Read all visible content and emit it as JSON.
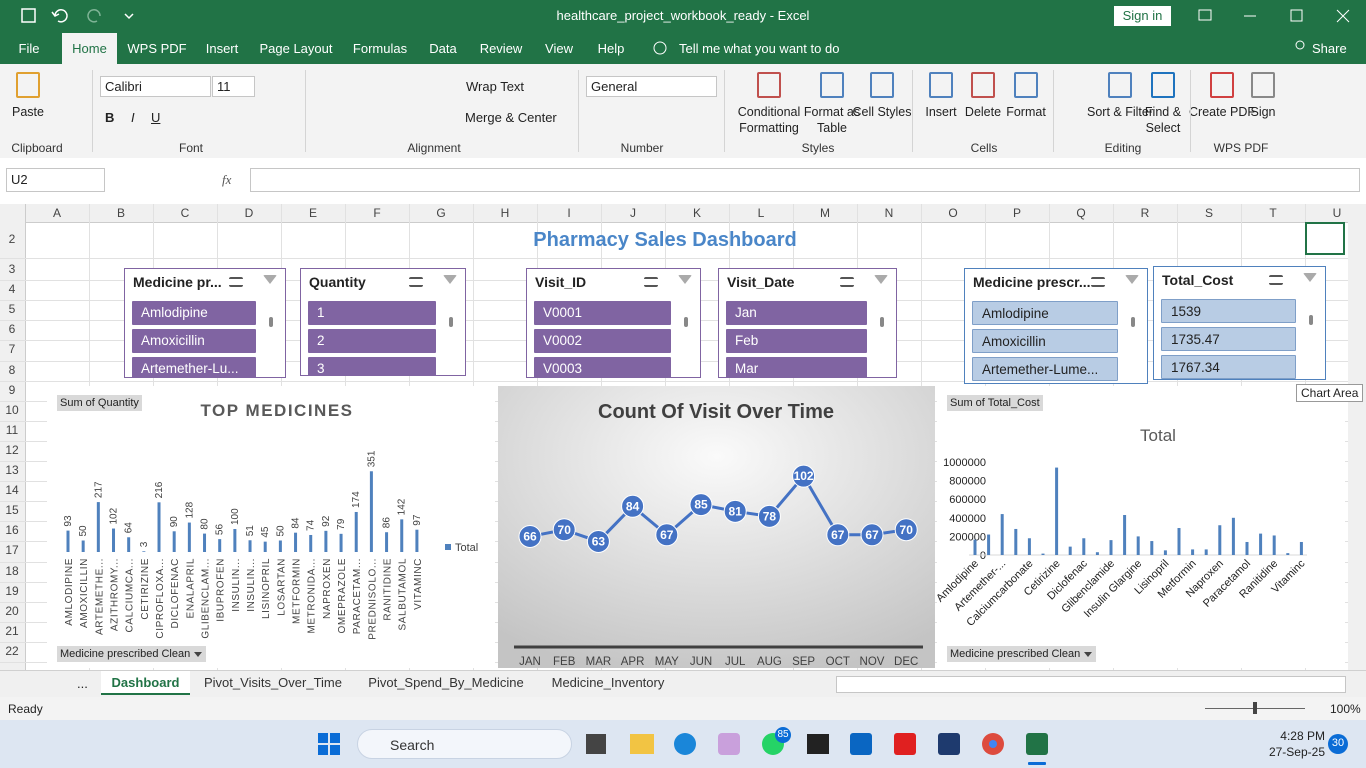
{
  "title_bar": {
    "title": "healthcare_project_workbook_ready  -  Excel",
    "sign_in": "Sign in"
  },
  "menu_tabs": [
    "File",
    "Home",
    "WPS PDF",
    "Insert",
    "Page Layout",
    "Formulas",
    "Data",
    "Review",
    "View",
    "Help"
  ],
  "tell_me": "Tell me what you want to do",
  "share": "Share",
  "ribbon": {
    "font_name": "Calibri",
    "font_size": "11",
    "wrap_text": "Wrap Text",
    "merge_center": "Merge & Center",
    "number_format": "General",
    "buttons": [
      "Paste",
      "Conditional Formatting",
      "Format as Table",
      "Cell Styles",
      "Insert",
      "Delete",
      "Format",
      "Sort & Filter",
      "Find & Select",
      "Create PDF",
      "Sign"
    ],
    "groups": [
      "Clipboard",
      "Font",
      "Alignment",
      "Number",
      "Styles",
      "Cells",
      "Editing",
      "WPS PDF"
    ]
  },
  "name_box": "U2",
  "fx": "fx",
  "columns": [
    "A",
    "B",
    "C",
    "D",
    "E",
    "F",
    "G",
    "H",
    "I",
    "J",
    "K",
    "L",
    "M",
    "N",
    "O",
    "P",
    "Q",
    "R",
    "S",
    "T",
    "U"
  ],
  "rows": [
    2,
    3,
    4,
    5,
    6,
    7,
    8,
    9,
    10,
    11,
    12,
    13,
    14,
    15,
    16,
    17,
    18,
    19,
    20,
    21,
    22
  ],
  "dashboard_title": "Pharmacy Sales Dashboard",
  "slicers": [
    {
      "title": "Medicine pr...",
      "items": [
        "Amlodipine",
        "Amoxicillin",
        "Artemether-Lu..."
      ]
    },
    {
      "title": "Quantity",
      "items": [
        "1",
        "2",
        "3"
      ]
    },
    {
      "title": "Visit_ID",
      "items": [
        "V0001",
        "V0002",
        "V0003"
      ]
    },
    {
      "title": "Visit_Date",
      "items": [
        "Jan",
        "Feb",
        "Mar"
      ]
    },
    {
      "title": "Medicine prescr...",
      "items": [
        "Amlodipine",
        "Amoxicillin",
        "Artemether-Lume..."
      ]
    },
    {
      "title": "Total_Cost",
      "items": [
        "1539",
        "1735.47",
        "1767.34"
      ]
    }
  ],
  "charts": [
    {
      "type": "bar",
      "title": "TOP MEDICINES",
      "field_button": "Sum of Quantity",
      "axis_button": "Medicine prescribed Clean",
      "legend": "Total",
      "color": "#4f81bd",
      "categories": [
        "AMLODIPINE",
        "AMOXICILLIN",
        "ARTEMETHE...",
        "AZITHROMY...",
        "CALCIUMCA...",
        "CETIRIZINE",
        "CIPROFLOXA...",
        "DICLOFENAC",
        "ENALAPRIL",
        "GLIBENCLAM...",
        "IBUPROFEN",
        "INSULIN...",
        "INSULIN...",
        "LISINOPRIL",
        "LOSARTAN",
        "METFORMIN",
        "METRONIDA...",
        "NAPROXEN",
        "OMEPRAZOLE",
        "PARACETAM...",
        "PREDNISOLO...",
        "RANITIDINE",
        "SALBUTAMOL",
        "VITAMINC"
      ],
      "values": [
        93,
        50,
        217,
        102,
        64,
        3,
        216,
        90,
        128,
        80,
        56,
        100,
        51,
        45,
        50,
        84,
        74,
        92,
        79,
        174,
        351,
        86,
        142,
        97
      ],
      "ylim": [
        0,
        400
      ]
    },
    {
      "type": "line",
      "title": "Count Of Visit Over Time",
      "color": "#4472c4",
      "categories": [
        "JAN",
        "FEB",
        "MAR",
        "APR",
        "MAY",
        "JUN",
        "JUL",
        "AUG",
        "SEP",
        "OCT",
        "NOV",
        "DEC"
      ],
      "values": [
        66,
        70,
        63,
        84,
        67,
        85,
        81,
        78,
        102,
        67,
        67,
        70
      ],
      "ylim": [
        0,
        120
      ]
    },
    {
      "type": "bar",
      "title": "Total",
      "field_button": "Sum of Total_Cost",
      "axis_button": "Medicine prescribed Clean",
      "color": "#4f81bd",
      "categories": [
        "Amlodipine",
        null,
        "Artemether-...",
        null,
        "Calciumcarbonate",
        null,
        "Cetirizine",
        null,
        "Diclofenac",
        null,
        "Glibenclamide",
        null,
        "Insulin Glargine",
        null,
        "Lisinopril",
        null,
        "Metformin",
        null,
        "Naproxen",
        null,
        "Paracetamol",
        null,
        "Ranitidine",
        null,
        "Vitaminc"
      ],
      "values": [
        165000,
        220000,
        440000,
        280000,
        180000,
        15000,
        940000,
        90000,
        180000,
        30000,
        160000,
        430000,
        200000,
        150000,
        50000,
        290000,
        60000,
        60000,
        320000,
        400000,
        140000,
        230000,
        210000,
        20000,
        140000
      ],
      "ylim": [
        0,
        1000000
      ],
      "yticks": [
        0,
        200000,
        400000,
        600000,
        800000,
        1000000
      ]
    }
  ],
  "tooltip": "Chart Area",
  "sheet_more": "...",
  "sheet_tabs": [
    "Dashboard",
    "Pivot_Visits_Over_Time",
    "Pivot_Spend_By_Medicine",
    "Medicine_Inventory"
  ],
  "status_bar": {
    "ready": "Ready",
    "zoom": "100%"
  },
  "taskbar": {
    "search": "Search",
    "time": "4:28 PM",
    "date": "27-Sep-25",
    "whatsapp_badge": "85",
    "notifications": "30"
  }
}
